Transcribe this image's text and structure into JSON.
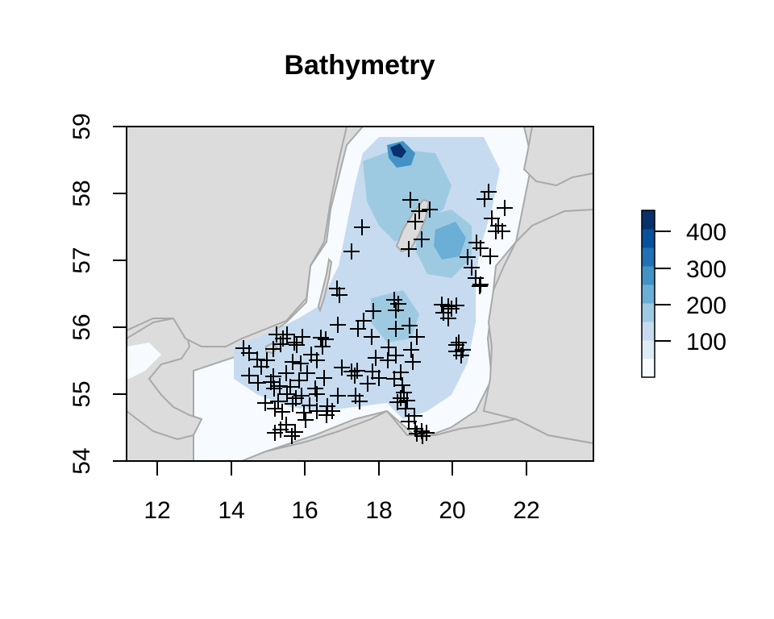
{
  "map": {
    "title": "Bathymetry",
    "x_ticks": [
      "12",
      "14",
      "16",
      "18",
      "20",
      "22"
    ],
    "y_ticks": [
      "54",
      "55",
      "56",
      "57",
      "58",
      "59"
    ],
    "colorbar": {
      "labels": [
        "400",
        "300",
        "200",
        "100"
      ],
      "colors": [
        "#f7fbff",
        "#deebf7",
        "#c6dbef",
        "#9ecae1",
        "#6baed6",
        "#4292c6",
        "#2171b5",
        "#08519c",
        "#08306b"
      ]
    },
    "colors": {
      "land": "#dcdcdc",
      "coast": "#a9a9a9",
      "shallow": "#f7fbff",
      "mid": "#c6dbef",
      "deep": "#6baed6"
    },
    "marker": "+"
  }
}
